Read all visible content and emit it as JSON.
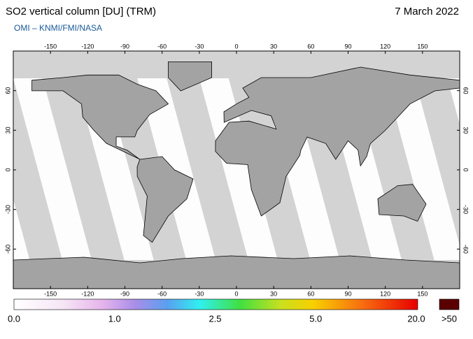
{
  "header": {
    "title": "SO2 vertical column [DU] (TRM)",
    "date": "7 March 2022",
    "subtitle": "OMI  –  KNMI/FMI/NASA"
  },
  "map": {
    "lon_ticks": [
      -150,
      -120,
      -90,
      -60,
      -30,
      0,
      30,
      60,
      90,
      120,
      150
    ],
    "lat_ticks": [
      60,
      30,
      0,
      -30,
      -60
    ]
  },
  "colorbar": {
    "labels": [
      "0.0",
      "1.0",
      "2.5",
      "5.0",
      "20.0"
    ],
    "overflow_label": ">50"
  }
}
